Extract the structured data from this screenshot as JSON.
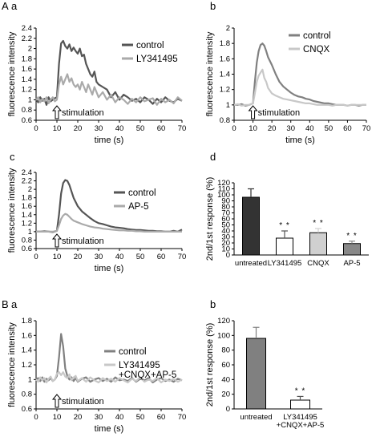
{
  "panel_labels": {
    "A": "A",
    "B": "B",
    "Aa": "a",
    "Ab": "b",
    "Ac": "c",
    "Ad": "d",
    "Ba": "a",
    "Bb": "b"
  },
  "chart_data": [
    {
      "id": "Aa",
      "type": "line",
      "xlabel": "time (s)",
      "ylabel": "fluorescence intensity",
      "xlim": [
        0,
        70
      ],
      "ylim": [
        0.6,
        2.4
      ],
      "xticks": [
        0,
        10,
        20,
        30,
        40,
        50,
        60,
        70
      ],
      "yticks": [
        0.6,
        0.8,
        1,
        1.2,
        1.4,
        1.6,
        1.8,
        2,
        2.2,
        2.4
      ],
      "yticklabels": [
        "0.6",
        "0.8",
        "1",
        "1.2",
        "1.4",
        "1.6",
        "1.8",
        "2",
        "2.2",
        "2.4"
      ],
      "legend_position": "top-right",
      "annotation": "stimulation",
      "stimulation_x": 10,
      "series": [
        {
          "name": "control",
          "color": "#555555",
          "x": [
            0,
            1,
            2,
            3,
            4,
            5,
            6,
            7,
            8,
            9,
            10,
            11,
            12,
            13,
            14,
            15,
            16,
            17,
            18,
            19,
            20,
            21,
            22,
            23,
            24,
            25,
            26,
            27,
            28,
            29,
            30,
            32,
            34,
            36,
            38,
            40,
            42,
            44,
            46,
            48,
            50,
            52,
            54,
            56,
            58,
            60,
            62,
            64,
            66,
            68,
            70
          ],
          "y": [
            1.0,
            0.95,
            1.05,
            0.98,
            1.02,
            0.9,
            1.05,
            0.97,
            1.0,
            1.03,
            1.05,
            1.7,
            2.1,
            2.15,
            2.05,
            2.0,
            2.08,
            1.95,
            2.02,
            1.95,
            1.9,
            2.0,
            1.85,
            1.88,
            1.7,
            1.6,
            1.5,
            1.45,
            1.55,
            1.35,
            1.3,
            1.25,
            1.2,
            1.05,
            1.15,
            1.0,
            1.1,
            1.05,
            0.98,
            1.02,
            0.95,
            1.05,
            1.0,
            0.92,
            1.02,
            0.95,
            1.05,
            0.98,
            0.95,
            1.02,
            0.98
          ]
        },
        {
          "name": "LY341495",
          "color": "#aaaaaa",
          "x": [
            0,
            1,
            2,
            3,
            4,
            5,
            6,
            7,
            8,
            9,
            10,
            11,
            12,
            13,
            14,
            15,
            16,
            17,
            18,
            19,
            20,
            21,
            22,
            23,
            24,
            25,
            26,
            27,
            28,
            29,
            30,
            32,
            34,
            36,
            38,
            40,
            42,
            44,
            46,
            48,
            50,
            52,
            54,
            56,
            58,
            60,
            62,
            64,
            66,
            68,
            70
          ],
          "y": [
            1.0,
            1.05,
            0.95,
            1.02,
            0.97,
            1.05,
            0.93,
            1.0,
            1.05,
            0.97,
            1.0,
            1.3,
            1.45,
            1.3,
            1.4,
            1.5,
            1.35,
            1.42,
            1.3,
            1.25,
            1.3,
            1.2,
            1.35,
            1.25,
            1.15,
            1.3,
            1.2,
            1.1,
            1.25,
            1.15,
            1.05,
            1.15,
            1.0,
            1.1,
            0.95,
            1.05,
            1.0,
            0.92,
            1.02,
            0.95,
            1.05,
            0.97,
            1.0,
            1.03,
            0.9,
            1.02,
            0.95,
            1.0,
            0.93,
            1.05,
            0.98
          ]
        }
      ]
    },
    {
      "id": "Ab",
      "type": "line",
      "xlabel": "time (s)",
      "ylabel": "fluorescence intensity",
      "xlim": [
        0,
        70
      ],
      "ylim": [
        0.8,
        2.0
      ],
      "xticks": [
        0,
        10,
        20,
        30,
        40,
        50,
        60,
        70
      ],
      "yticks": [
        0.8,
        1,
        1.2,
        1.4,
        1.6,
        1.8,
        2
      ],
      "yticklabels": [
        "0.8",
        "1",
        "1.2",
        "1.4",
        "1.6",
        "1.8",
        "2"
      ],
      "legend_position": "top-right",
      "annotation": "stimulation",
      "stimulation_x": 10,
      "series": [
        {
          "name": "control",
          "color": "#808080",
          "x": [
            0,
            2,
            4,
            6,
            8,
            10,
            11,
            12,
            13,
            14,
            15,
            16,
            17,
            18,
            20,
            22,
            24,
            26,
            28,
            30,
            32,
            34,
            36,
            38,
            40,
            42,
            44,
            46,
            48,
            50,
            52,
            54,
            56,
            58,
            60,
            62,
            64,
            66,
            68,
            70
          ],
          "y": [
            1.0,
            1.0,
            1.01,
            0.99,
            1.0,
            1.02,
            1.3,
            1.55,
            1.7,
            1.78,
            1.8,
            1.77,
            1.7,
            1.62,
            1.52,
            1.4,
            1.3,
            1.24,
            1.2,
            1.16,
            1.13,
            1.11,
            1.1,
            1.08,
            1.07,
            1.05,
            1.04,
            1.03,
            1.02,
            1.02,
            1.01,
            1.0,
            1.0,
            1.0,
            0.99,
            1.0,
            1.0,
            0.99,
            1.0,
            1.0
          ]
        },
        {
          "name": "CNQX",
          "color": "#c8c8c8",
          "x": [
            0,
            2,
            4,
            6,
            8,
            10,
            11,
            12,
            13,
            14,
            15,
            16,
            17,
            18,
            20,
            22,
            24,
            26,
            28,
            30,
            32,
            34,
            36,
            38,
            40,
            42,
            44,
            46,
            48,
            50,
            52,
            54,
            56,
            58,
            60,
            62,
            64,
            66,
            68,
            70
          ],
          "y": [
            1.0,
            1.01,
            0.99,
            1.0,
            1.0,
            1.02,
            1.15,
            1.3,
            1.38,
            1.42,
            1.46,
            1.35,
            1.3,
            1.22,
            1.15,
            1.12,
            1.1,
            1.08,
            1.07,
            1.06,
            1.05,
            1.04,
            1.03,
            1.02,
            1.02,
            1.01,
            1.0,
            1.0,
            1.0,
            1.0,
            0.99,
            1.0,
            1.0,
            1.0,
            0.99,
            1.0,
            1.0,
            1.0,
            1.0,
            1.0
          ]
        }
      ]
    },
    {
      "id": "Ac",
      "type": "line",
      "xlabel": "time (s)",
      "ylabel": "fluorescence intensity",
      "xlim": [
        0,
        70
      ],
      "ylim": [
        0.6,
        2.4
      ],
      "xticks": [
        0,
        10,
        20,
        30,
        40,
        50,
        60,
        70
      ],
      "yticks": [
        0.6,
        0.8,
        1,
        1.2,
        1.4,
        1.6,
        1.8,
        2,
        2.2,
        2.4
      ],
      "yticklabels": [
        "0.6",
        "0.8",
        "1",
        "1.2",
        "1.4",
        "1.6",
        "1.8",
        "2",
        "2.2",
        "2.4"
      ],
      "legend_position": "top-right",
      "annotation": "stimulation",
      "stimulation_x": 10,
      "series": [
        {
          "name": "control",
          "color": "#555555",
          "x": [
            0,
            2,
            4,
            6,
            8,
            10,
            11,
            12,
            13,
            14,
            15,
            16,
            17,
            18,
            20,
            22,
            24,
            26,
            28,
            30,
            32,
            34,
            36,
            38,
            40,
            42,
            44,
            46,
            48,
            50,
            52,
            54,
            56,
            58,
            60,
            62,
            64,
            66,
            68,
            70
          ],
          "y": [
            1.0,
            1.0,
            1.01,
            1.0,
            0.99,
            1.02,
            1.4,
            1.9,
            2.15,
            2.22,
            2.2,
            2.1,
            1.95,
            1.8,
            1.6,
            1.48,
            1.4,
            1.32,
            1.25,
            1.2,
            1.18,
            1.15,
            1.12,
            1.1,
            1.09,
            1.08,
            1.06,
            1.05,
            1.04,
            1.04,
            1.03,
            1.02,
            1.02,
            1.01,
            1.01,
            1.0,
            1.0,
            1.02,
            1.0,
            1.05
          ]
        },
        {
          "name": "AP-5",
          "color": "#aaaaaa",
          "x": [
            0,
            2,
            4,
            6,
            8,
            10,
            11,
            12,
            13,
            14,
            15,
            16,
            17,
            18,
            20,
            22,
            24,
            26,
            28,
            30,
            32,
            34,
            36,
            38,
            40,
            42,
            44,
            46,
            48,
            50,
            52,
            54,
            56,
            58,
            60,
            62,
            64,
            66,
            68,
            70
          ],
          "y": [
            1.0,
            1.0,
            1.0,
            1.0,
            1.0,
            1.02,
            1.15,
            1.3,
            1.38,
            1.42,
            1.4,
            1.35,
            1.3,
            1.26,
            1.22,
            1.18,
            1.15,
            1.12,
            1.1,
            1.09,
            1.07,
            1.06,
            1.05,
            1.04,
            1.03,
            1.03,
            1.02,
            1.02,
            1.01,
            1.01,
            1.0,
            1.0,
            1.0,
            1.0,
            1.0,
            1.0,
            1.0,
            1.0,
            1.0,
            1.0
          ]
        }
      ]
    },
    {
      "id": "Ad",
      "type": "bar",
      "ylabel": "2nd/1st response (%)",
      "ylim": [
        0,
        120
      ],
      "yticks": [
        0,
        10,
        20,
        30,
        40,
        50,
        60,
        70,
        80,
        90,
        100,
        110,
        120
      ],
      "categories": [
        "untreated",
        "LY341495",
        "CNQX",
        "AP-5"
      ],
      "values": [
        96,
        28,
        37,
        19
      ],
      "errors": [
        14,
        12,
        7,
        4
      ],
      "colors": [
        "#333333",
        "#ffffff",
        "#d0d0d0",
        "#888888"
      ],
      "significance": [
        "",
        "**",
        "**",
        "**"
      ]
    },
    {
      "id": "Ba",
      "type": "line",
      "xlabel": "time (s)",
      "ylabel": "fluorescence intensity",
      "xlim": [
        0,
        70
      ],
      "ylim": [
        0.6,
        1.8
      ],
      "xticks": [
        0,
        10,
        20,
        30,
        40,
        50,
        60,
        70
      ],
      "yticks": [
        0.6,
        0.8,
        1,
        1.2,
        1.4,
        1.6,
        1.8
      ],
      "yticklabels": [
        "0.6",
        "0.8",
        "1",
        "1.2",
        "1.4",
        "1.6",
        "1.8"
      ],
      "legend_position": "top-right",
      "annotation": "stimulation",
      "stimulation_x": 10,
      "series": [
        {
          "name": "control",
          "color": "#808080",
          "x": [
            0,
            1,
            2,
            3,
            4,
            5,
            6,
            7,
            8,
            9,
            10,
            11,
            12,
            13,
            14,
            15,
            16,
            17,
            18,
            19,
            20,
            22,
            24,
            26,
            28,
            30,
            32,
            34,
            36,
            38,
            40,
            42,
            44,
            46,
            48,
            50,
            52,
            54,
            56,
            58,
            60,
            62,
            64,
            66,
            68,
            70
          ],
          "y": [
            1.0,
            1.02,
            0.98,
            1.03,
            0.97,
            1.01,
            0.99,
            1.02,
            0.98,
            1.0,
            1.05,
            1.3,
            1.62,
            1.45,
            1.15,
            1.05,
            1.0,
            1.03,
            0.98,
            1.02,
            0.97,
            1.01,
            1.03,
            0.97,
            1.0,
            1.02,
            0.98,
            1.01,
            0.97,
            1.03,
            0.99,
            1.0,
            0.98,
            1.02,
            0.97,
            1.01,
            0.99,
            1.02,
            0.96,
            1.0,
            1.02,
            0.98,
            1.0,
            0.97,
            1.01,
            0.99
          ]
        },
        {
          "name": "LY341495\n+CNQX+AP-5",
          "color": "#c8c8c8",
          "x": [
            0,
            1,
            2,
            3,
            4,
            5,
            6,
            7,
            8,
            9,
            10,
            11,
            12,
            13,
            14,
            15,
            16,
            17,
            18,
            19,
            20,
            22,
            24,
            26,
            28,
            30,
            32,
            34,
            36,
            38,
            40,
            42,
            44,
            46,
            48,
            50,
            52,
            54,
            56,
            58,
            60,
            62,
            64,
            66,
            68,
            70
          ],
          "y": [
            1.0,
            0.97,
            1.03,
            0.99,
            1.02,
            0.96,
            1.01,
            1.04,
            0.98,
            1.0,
            1.08,
            1.1,
            1.06,
            1.1,
            1.04,
            1.02,
            1.07,
            0.99,
            1.03,
            1.05,
            0.98,
            1.02,
            0.97,
            1.03,
            0.99,
            0.96,
            1.02,
            0.98,
            1.01,
            0.97,
            1.02,
            0.99,
            0.96,
            1.01,
            0.98,
            1.03,
            0.97,
            1.0,
            0.98,
            1.02,
            0.96,
            1.0,
            0.98,
            1.01,
            0.97,
            1.0
          ]
        }
      ]
    },
    {
      "id": "Bb",
      "type": "bar",
      "ylabel": "2nd/1st response (%)",
      "ylim": [
        0,
        120
      ],
      "yticks": [
        0,
        20,
        40,
        60,
        80,
        100,
        120
      ],
      "categories": [
        "untreated",
        "LY341495\n+CNQX+AP-5"
      ],
      "values": [
        96,
        12
      ],
      "errors": [
        15,
        5
      ],
      "colors": [
        "#808080",
        "#ffffff"
      ],
      "significance": [
        "",
        "**"
      ]
    }
  ]
}
